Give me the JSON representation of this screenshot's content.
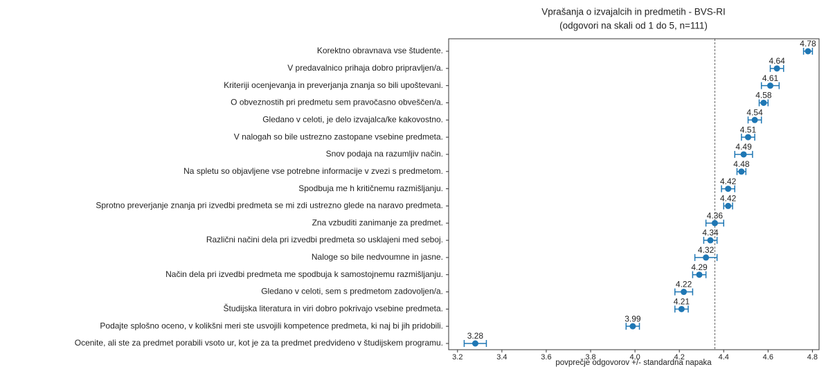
{
  "chart_data": {
    "type": "errorbar_dot",
    "title": "Vprašanja o izvajalcih in predmetih - BVS-RI",
    "subtitle": "(odgovori na skali od 1 do 5, n=111)",
    "xlabel": "povprečje odgovorov +/- standardna napaka",
    "categories": [
      "Korektno obravnava vse študente.",
      "V predavalnico prihaja dobro pripravljen/a.",
      "Kriteriji ocenjevanja in preverjanja znanja so bili upoštevani.",
      "O obveznostih pri predmetu sem pravočasno obveščen/a.",
      "Gledano v celoti, je delo izvajalca/ke kakovostno.",
      "V nalogah so bile ustrezno zastopane vsebine predmeta.",
      "Snov podaja na razumljiv način.",
      "Na spletu so objavljene vse potrebne informacije v zvezi s predmetom.",
      "Spodbuja me h kritičnemu razmišljanju.",
      "Sprotno preverjanje znanja pri izvedbi predmeta se mi zdi ustrezno glede na naravo predmeta.",
      "Zna vzbuditi zanimanje za predmet.",
      "Različni načini dela pri izvedbi predmeta so usklajeni med seboj.",
      "Naloge so bile nedvoumne in jasne.",
      "Način dela pri izvedbi predmeta me spodbuja k samostojnemu razmišljanju.",
      "Gledano v celoti, sem s predmetom zadovoljen/a.",
      "Študijska literatura in viri dobro pokrivajo vsebine predmeta.",
      "Podajte splošno oceno, v kolikšni meri ste usvojili kompetence predmeta, ki naj bi jih pridobili.",
      "Ocenite, ali ste za predmet porabili vsoto ur, kot je za ta predmet predvideno v študijskem programu."
    ],
    "values": [
      4.78,
      4.64,
      4.61,
      4.58,
      4.54,
      4.51,
      4.49,
      4.48,
      4.42,
      4.42,
      4.36,
      4.34,
      4.32,
      4.29,
      4.22,
      4.21,
      3.99,
      3.28
    ],
    "errors": [
      0.02,
      0.03,
      0.04,
      0.02,
      0.03,
      0.03,
      0.04,
      0.02,
      0.03,
      0.02,
      0.04,
      0.03,
      0.05,
      0.03,
      0.04,
      0.03,
      0.03,
      0.05
    ],
    "reference_line": 4.36,
    "color": "#1f77b4",
    "xlim": [
      3.16,
      4.83
    ],
    "xticks": [
      3.2,
      3.4,
      3.6,
      3.8,
      {
        "value": 4,
        "label": "4.0"
      },
      4.2,
      4.4,
      4.6,
      4.8
    ]
  }
}
